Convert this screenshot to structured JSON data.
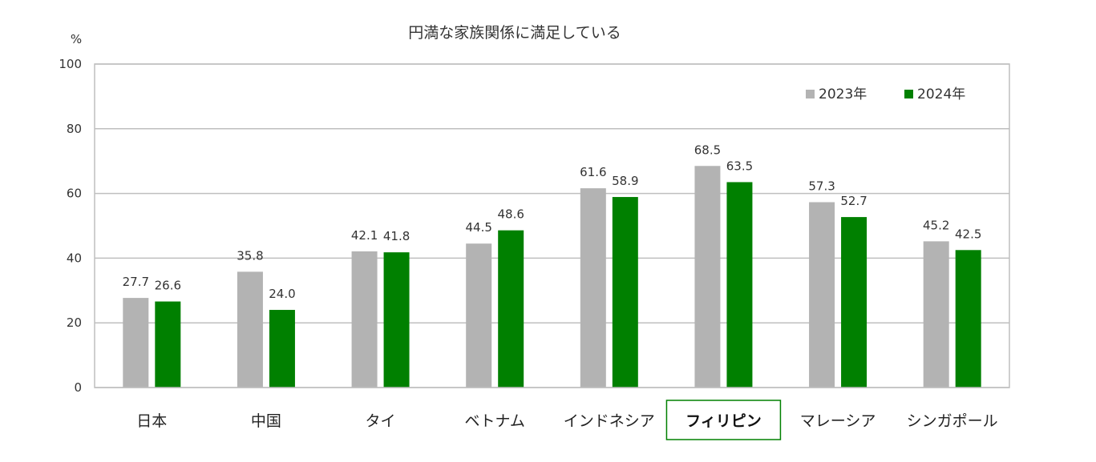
{
  "chart_data": {
    "type": "bar",
    "title": "円満な家族関係に満足している",
    "unit": "%",
    "categories": [
      "日本",
      "中国",
      "タイ",
      "ベトナム",
      "インドネシア",
      "フィリピン",
      "マレーシア",
      "シンガポール"
    ],
    "highlight_category": "フィリピン",
    "series": [
      {
        "name": "2023年",
        "color": "#b3b3b3",
        "values": [
          27.7,
          35.8,
          42.1,
          44.5,
          61.6,
          68.5,
          57.3,
          45.2
        ]
      },
      {
        "name": "2024年",
        "color": "#008000",
        "values": [
          26.6,
          24.0,
          41.8,
          48.6,
          58.9,
          63.5,
          52.7,
          42.5
        ]
      }
    ],
    "ylim": [
      0,
      100
    ],
    "yticks": [
      0,
      20,
      40,
      60,
      80,
      100
    ],
    "grid": true,
    "legend": "top-right",
    "highlight_color": "#008000"
  }
}
